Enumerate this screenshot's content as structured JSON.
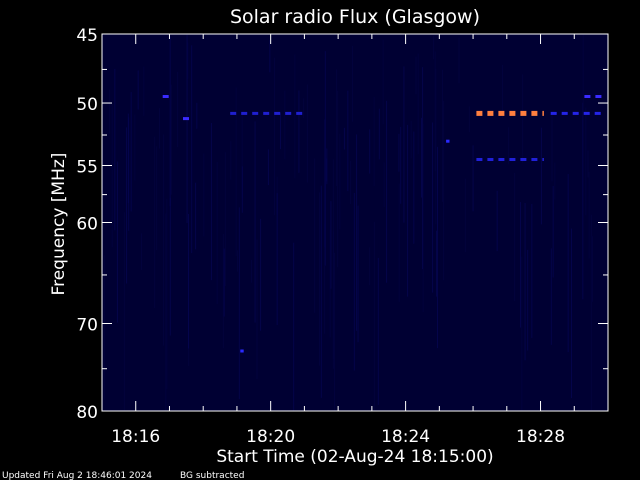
{
  "chart_data": {
    "type": "heatmap",
    "title": "Solar radio Flux (Glasgow)",
    "xlabel": "Start Time (02-Aug-24 18:15:00)",
    "ylabel": "Frequency [MHz]",
    "x_range_minutes": [
      0.0,
      15.0
    ],
    "x_ticks": [
      {
        "minute": 1,
        "label": "18:16"
      },
      {
        "minute": 5,
        "label": "18:20"
      },
      {
        "minute": 9,
        "label": "18:24"
      },
      {
        "minute": 13,
        "label": "18:28"
      }
    ],
    "ylim": [
      45,
      80
    ],
    "y_scale": "log",
    "y_ticks": [
      45,
      50,
      55,
      60,
      70,
      80
    ],
    "y_minor_ticks": [
      47.5,
      52.5,
      57.5,
      65,
      75
    ],
    "background_color": "#000033",
    "grid": false,
    "highlight_segments": [
      {
        "freq": 50.8,
        "t_start": 11.1,
        "t_end": 13.1,
        "color": "#ff7f3f",
        "level": "high"
      }
    ],
    "emission_segments": [
      {
        "freq": 49.5,
        "t_start": 1.8,
        "t_end": 2.1,
        "color": "#3a2bff",
        "level": "medium"
      },
      {
        "freq": 51.2,
        "t_start": 2.4,
        "t_end": 2.6,
        "color": "#3a2bff",
        "level": "medium"
      },
      {
        "freq": 50.8,
        "t_start": 3.8,
        "t_end": 6.0,
        "color": "#1f1fd0",
        "level": "low"
      },
      {
        "freq": 54.5,
        "t_start": 11.1,
        "t_end": 13.1,
        "color": "#2020d8",
        "level": "low"
      },
      {
        "freq": 50.8,
        "t_start": 13.3,
        "t_end": 14.8,
        "color": "#2424e8",
        "level": "low"
      },
      {
        "freq": 49.5,
        "t_start": 14.3,
        "t_end": 14.9,
        "color": "#3a2bff",
        "level": "medium"
      },
      {
        "freq": 53.0,
        "t_start": 10.2,
        "t_end": 10.3,
        "color": "#2a2aff",
        "level": "low"
      },
      {
        "freq": 73.0,
        "t_start": 4.1,
        "t_end": 4.2,
        "color": "#2a2aff",
        "level": "low"
      }
    ]
  },
  "footer": {
    "updated": "Updated Fri Aug  2 18:46:01 2024",
    "note": "BG subtracted"
  }
}
